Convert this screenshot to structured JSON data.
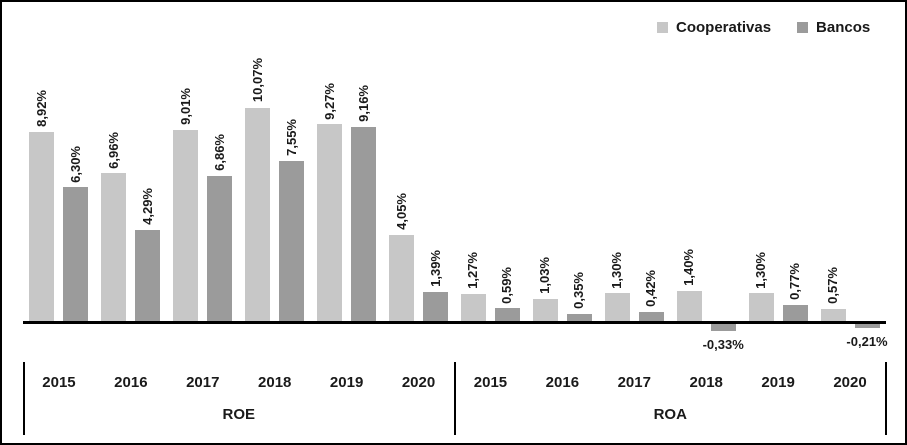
{
  "legend": {
    "items": [
      {
        "label": "Cooperativas",
        "color": "#c7c7c7"
      },
      {
        "label": "Bancos",
        "color": "#9b9b9b"
      }
    ]
  },
  "chart_data": {
    "type": "bar",
    "title": "",
    "xlabel": "",
    "ylabel": "",
    "value_format": "percent, comma decimal separator",
    "grid": false,
    "legend_position": "top-right",
    "ylim": [
      -0.5,
      10.5
    ],
    "series_colors": {
      "Cooperativas": "#c7c7c7",
      "Bancos": "#9b9b9b"
    },
    "groups": [
      {
        "label": "ROE",
        "categories": [
          "2015",
          "2016",
          "2017",
          "2018",
          "2019",
          "2020"
        ],
        "series": [
          {
            "name": "Cooperativas",
            "values": [
              8.92,
              6.96,
              9.01,
              10.07,
              9.27,
              4.05
            ],
            "labels": [
              "8,92%",
              "6,96%",
              "9,01%",
              "10,07%",
              "9,27%",
              "4,05%"
            ]
          },
          {
            "name": "Bancos",
            "values": [
              6.3,
              4.29,
              6.86,
              7.55,
              9.16,
              1.39
            ],
            "labels": [
              "6,30%",
              "4,29%",
              "6,86%",
              "7,55%",
              "9,16%",
              "1,39%"
            ]
          }
        ]
      },
      {
        "label": "ROA",
        "categories": [
          "2015",
          "2016",
          "2017",
          "2018",
          "2019",
          "2020"
        ],
        "series": [
          {
            "name": "Cooperativas",
            "values": [
              1.27,
              1.03,
              1.3,
              1.4,
              1.3,
              0.57
            ],
            "labels": [
              "1,27%",
              "1,03%",
              "1,30%",
              "1,40%",
              "1,30%",
              "0,57%"
            ]
          },
          {
            "name": "Bancos",
            "values": [
              0.59,
              0.35,
              0.42,
              -0.33,
              0.77,
              -0.21
            ],
            "labels": [
              "0,59%",
              "0,35%",
              "0,42%",
              "-0,33%",
              "0,77%",
              "-0,21%"
            ]
          }
        ]
      }
    ]
  }
}
